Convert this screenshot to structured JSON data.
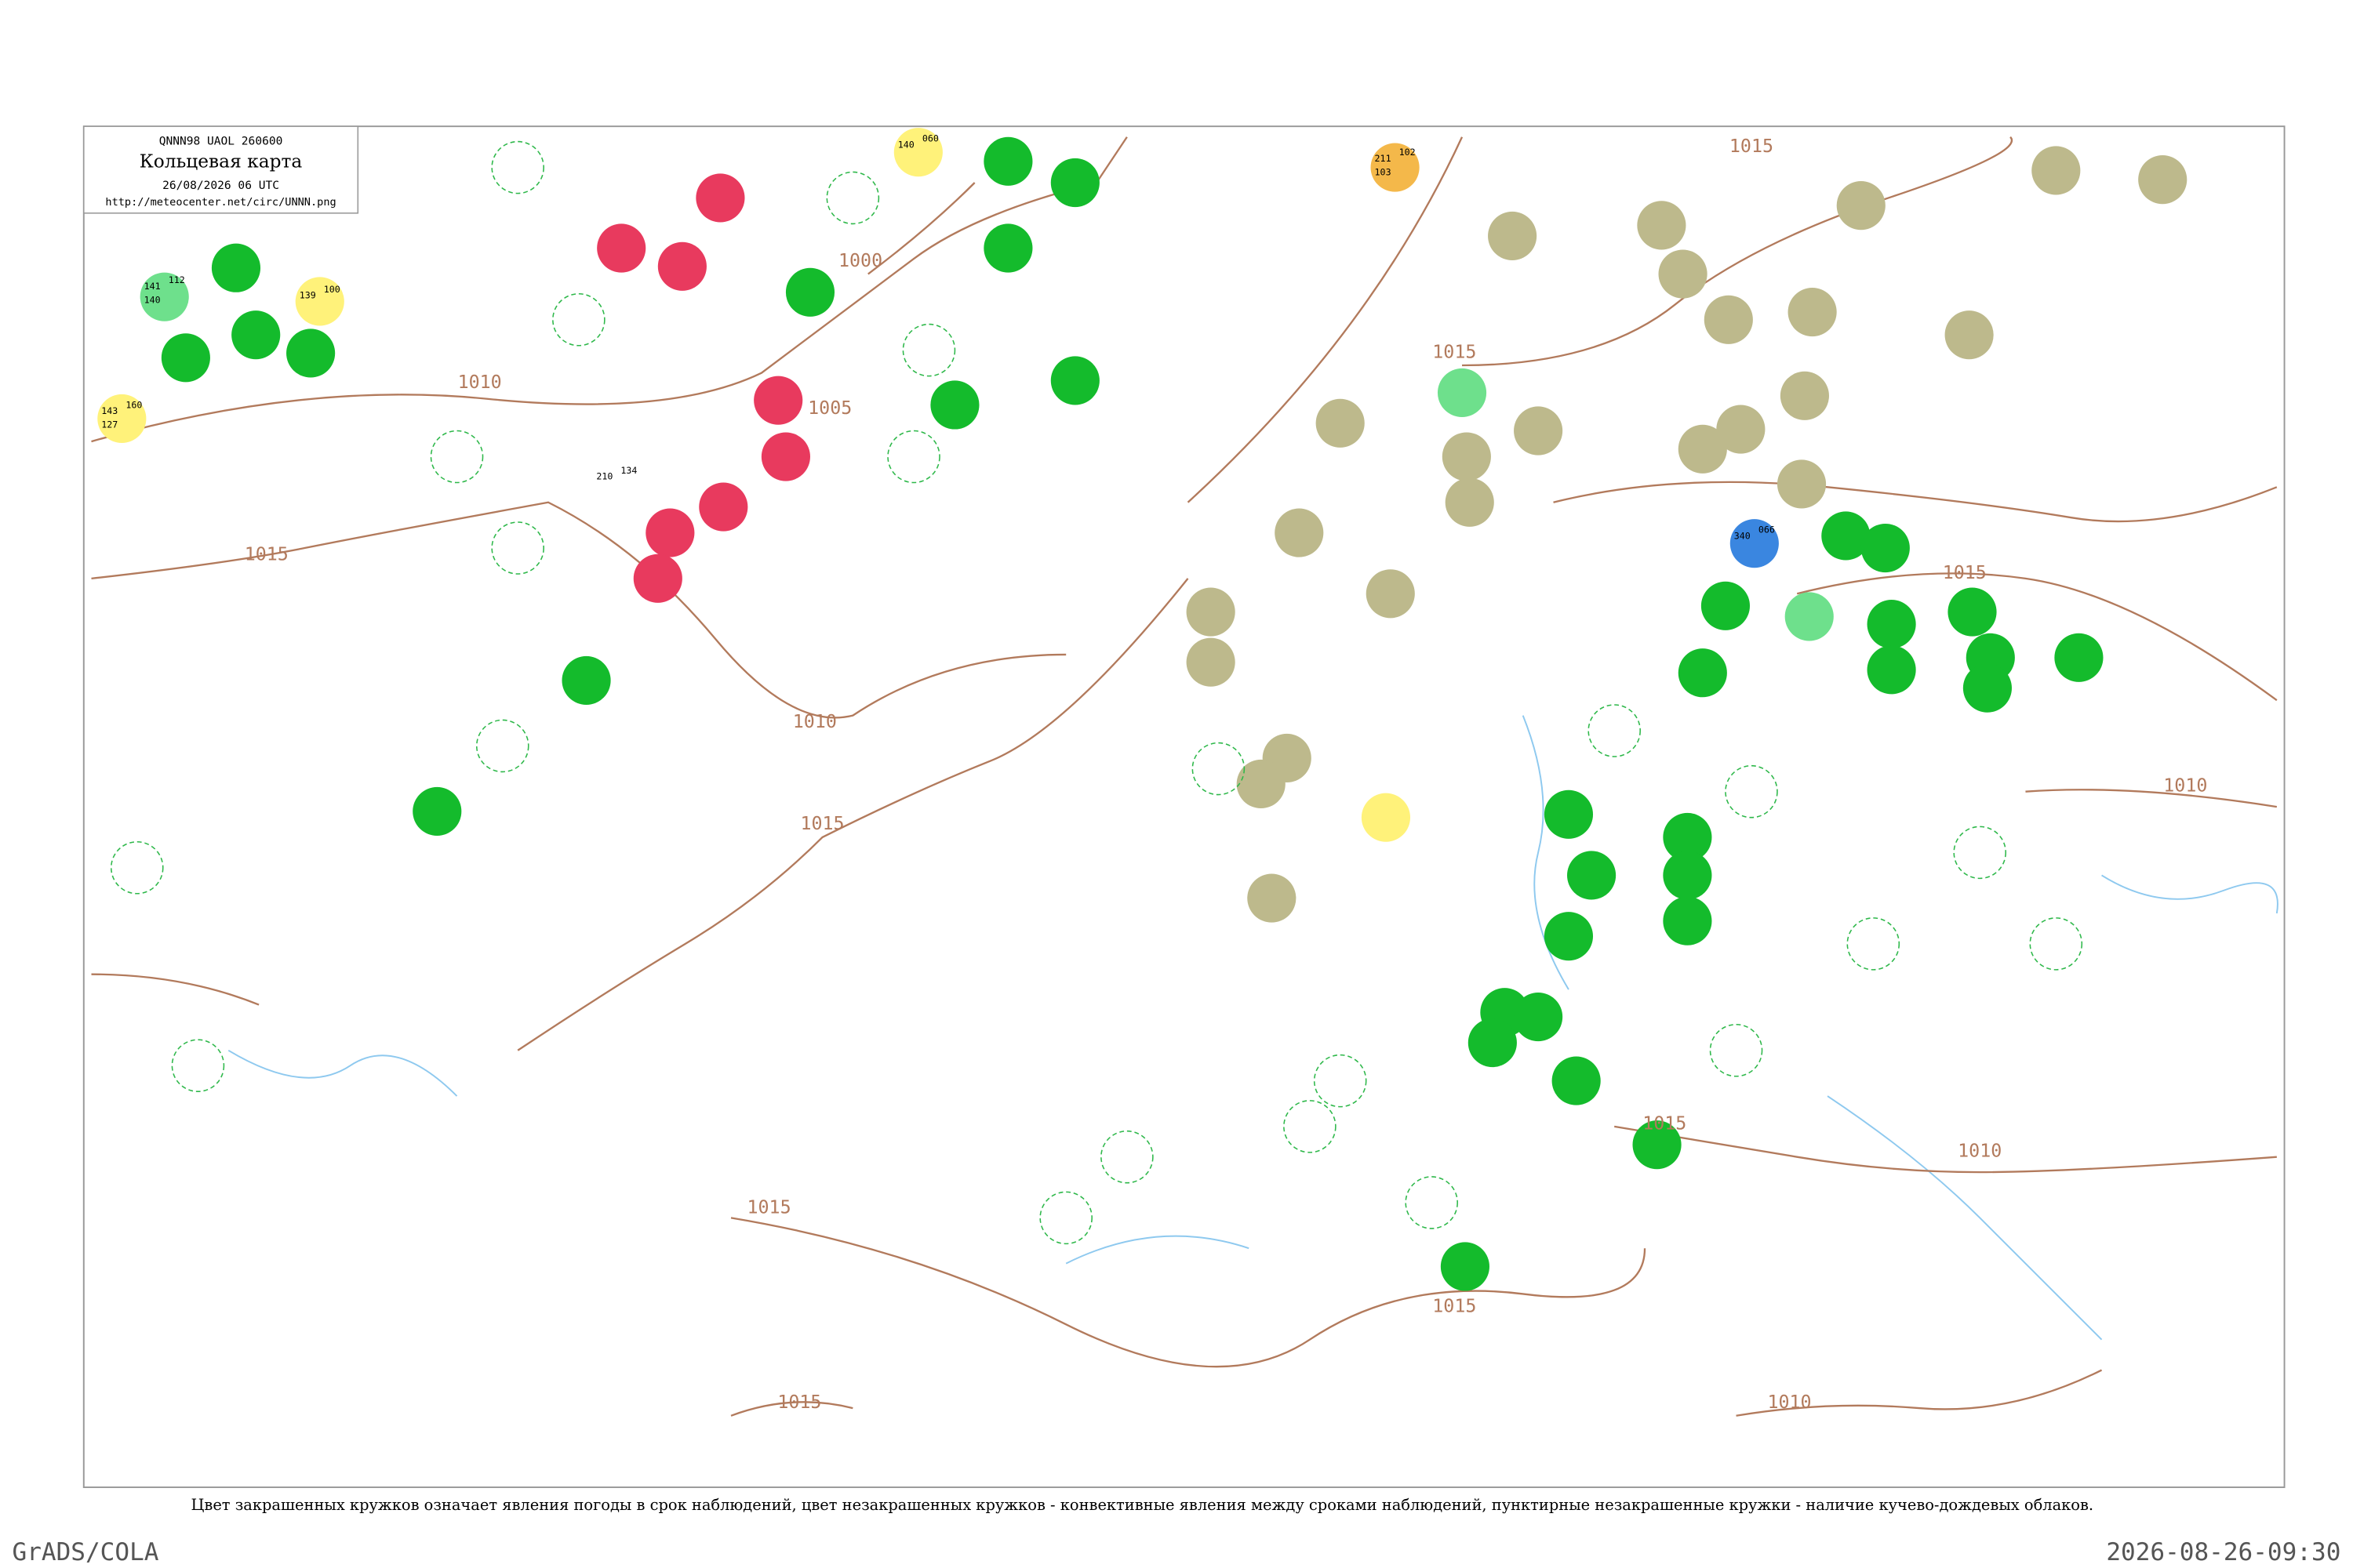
{
  "header": {
    "code": "QNNN98 UAOL 260600",
    "title": "Кольцевая карта",
    "datetime": "26/08/2026 06 UTC",
    "url": "http://meteocenter.net/circ/UNNN.png"
  },
  "isobar_labels": [
    "1015",
    "1000",
    "1010",
    "1015",
    "1005",
    "1015",
    "1010",
    "1015",
    "1015",
    "1010",
    "1015",
    "1010",
    "1015",
    "1015",
    "1015",
    "1010"
  ],
  "stations": [
    {
      "values": [
        "143",
        "160",
        "127"
      ]
    },
    {
      "values": [
        "139",
        "100"
      ]
    },
    {
      "values": [
        "141",
        "112",
        "140"
      ]
    },
    {
      "values": [
        "211",
        "102",
        "103"
      ]
    },
    {
      "values": [
        "340",
        "066"
      ]
    },
    {
      "values": [
        "140",
        "060"
      ]
    },
    {
      "values": [
        "210",
        "134"
      ]
    }
  ],
  "caption": "Цвет закрашенных кружков означает явления погоды в срок наблюдений, цвет незакрашенных кружков - конвективные явления между сроками наблюдений, пунктирные незакрашенные кружки - наличие кучево-дождевых облаков.",
  "footer": {
    "left": "GrADS/COLA",
    "right": "2026-08-26-09:30"
  }
}
